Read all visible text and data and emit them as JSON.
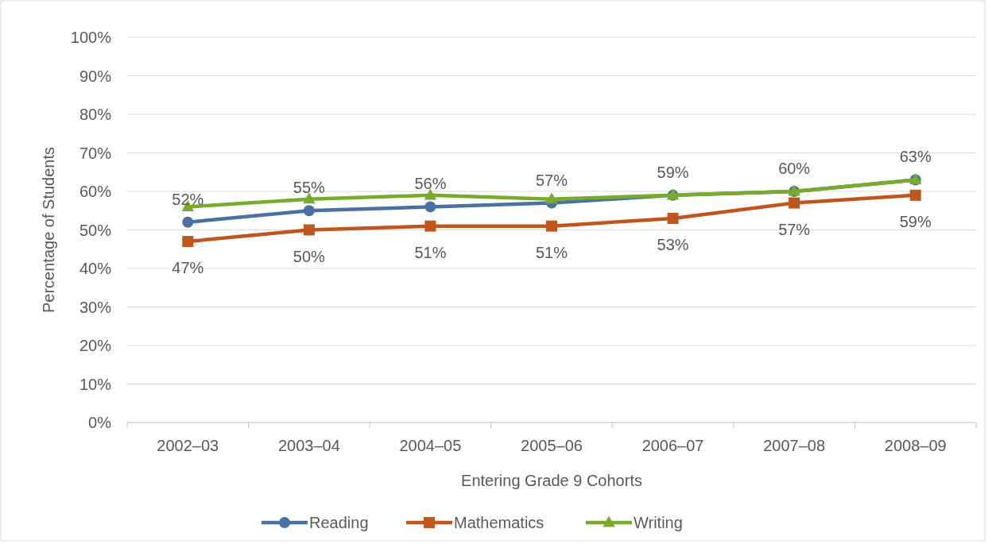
{
  "chart_data": {
    "type": "line",
    "xlabel": "Entering Grade 9 Cohorts",
    "ylabel": "Percentage of Students",
    "categories": [
      "2002–03",
      "2003–04",
      "2004–05",
      "2005–06",
      "2006–07",
      "2007–08",
      "2008–09"
    ],
    "ylim": [
      0,
      100
    ],
    "yticks": [
      {
        "value": 0,
        "label": "0%"
      },
      {
        "value": 10,
        "label": "10%"
      },
      {
        "value": 20,
        "label": "20%"
      },
      {
        "value": 30,
        "label": "30%"
      },
      {
        "value": 40,
        "label": "40%"
      },
      {
        "value": 50,
        "label": "50%"
      },
      {
        "value": 60,
        "label": "60%"
      },
      {
        "value": 70,
        "label": "70%"
      },
      {
        "value": 80,
        "label": "80%"
      },
      {
        "value": 90,
        "label": "90%"
      },
      {
        "value": 100,
        "label": "100%"
      }
    ],
    "grid": "y",
    "legend": "bottom",
    "line_style": "solid",
    "series": [
      {
        "name": "Reading",
        "color": "#4a72a0",
        "marker": "circle",
        "values": [
          52,
          55,
          56,
          57,
          59,
          60,
          63
        ],
        "value_labels": [
          "52%",
          "55%",
          "56%",
          "57%",
          "59%",
          "60%",
          "63%"
        ]
      },
      {
        "name": "Mathematics",
        "color": "#c0561c",
        "marker": "square",
        "values": [
          47,
          50,
          51,
          51,
          53,
          57,
          59
        ],
        "value_labels": [
          "47%",
          "50%",
          "51%",
          "51%",
          "53%",
          "57%",
          "59%"
        ]
      },
      {
        "name": "Writing",
        "color": "#78ab2a",
        "marker": "triangle",
        "values": [
          56,
          58,
          59,
          58,
          59,
          60,
          63
        ]
      }
    ]
  }
}
